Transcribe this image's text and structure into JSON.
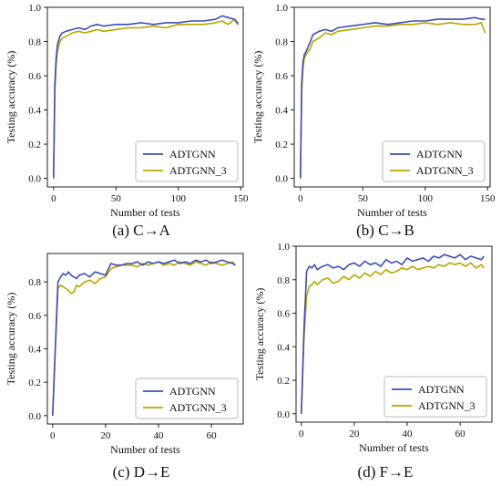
{
  "chart_data": [
    {
      "type": "line",
      "caption": "(a) C→A",
      "xlabel": "Number of tests",
      "ylabel": "Testing accuracy (%)",
      "xlim": [
        -5,
        152
      ],
      "ylim": [
        -0.05,
        1.0
      ],
      "xticks": [
        0,
        50,
        100,
        150
      ],
      "yticks": [
        0.0,
        0.2,
        0.4,
        0.6,
        0.8,
        1.0
      ],
      "ytick_labels": [
        "0.0",
        "0.2",
        "0.4",
        "0.6",
        "0.8",
        "1.0"
      ],
      "legend_position": "lower-right",
      "grid": false,
      "series": [
        {
          "name": "ADTGNN",
          "color": "#3f4fb5",
          "x": [
            0,
            1,
            2,
            3,
            5,
            7,
            10,
            15,
            20,
            25,
            30,
            35,
            40,
            50,
            60,
            70,
            80,
            90,
            100,
            110,
            120,
            130,
            135,
            140,
            145,
            148
          ],
          "y": [
            0.0,
            0.55,
            0.7,
            0.78,
            0.83,
            0.85,
            0.86,
            0.87,
            0.88,
            0.87,
            0.89,
            0.9,
            0.89,
            0.9,
            0.9,
            0.91,
            0.9,
            0.91,
            0.91,
            0.92,
            0.92,
            0.93,
            0.95,
            0.94,
            0.93,
            0.9
          ]
        },
        {
          "name": "ADTGNN_3",
          "color": "#b5a800",
          "x": [
            0,
            1,
            2,
            3,
            5,
            7,
            10,
            15,
            20,
            25,
            30,
            35,
            40,
            50,
            60,
            70,
            80,
            90,
            100,
            110,
            120,
            130,
            135,
            140,
            145,
            148
          ],
          "y": [
            0.0,
            0.5,
            0.66,
            0.74,
            0.8,
            0.82,
            0.83,
            0.85,
            0.86,
            0.85,
            0.86,
            0.87,
            0.86,
            0.87,
            0.88,
            0.88,
            0.89,
            0.88,
            0.9,
            0.9,
            0.9,
            0.91,
            0.92,
            0.9,
            0.93,
            0.91
          ]
        }
      ]
    },
    {
      "type": "line",
      "caption": "(b) C→B",
      "xlabel": "Number of tests",
      "ylabel": "Testing accuracy (%)",
      "xlim": [
        -5,
        152
      ],
      "ylim": [
        -0.05,
        1.0
      ],
      "xticks": [
        0,
        50,
        100,
        150
      ],
      "yticks": [
        0.0,
        0.2,
        0.4,
        0.6,
        0.8,
        1.0
      ],
      "ytick_labels": [
        "0.0",
        "0.2",
        "0.4",
        "0.6",
        "0.8",
        "1.0"
      ],
      "legend_position": "lower-right",
      "grid": false,
      "series": [
        {
          "name": "ADTGNN",
          "color": "#3f4fb5",
          "x": [
            0,
            1,
            2,
            3,
            5,
            8,
            10,
            15,
            20,
            25,
            30,
            40,
            50,
            60,
            70,
            80,
            90,
            100,
            110,
            120,
            130,
            140,
            145,
            148
          ],
          "y": [
            0.0,
            0.55,
            0.68,
            0.72,
            0.75,
            0.8,
            0.84,
            0.86,
            0.87,
            0.86,
            0.88,
            0.89,
            0.9,
            0.91,
            0.9,
            0.91,
            0.92,
            0.92,
            0.93,
            0.93,
            0.93,
            0.94,
            0.93,
            0.93
          ]
        },
        {
          "name": "ADTGNN_3",
          "color": "#b5a800",
          "x": [
            0,
            1,
            2,
            3,
            5,
            8,
            10,
            15,
            20,
            25,
            30,
            40,
            50,
            60,
            70,
            80,
            90,
            100,
            110,
            120,
            130,
            140,
            145,
            148
          ],
          "y": [
            0.0,
            0.5,
            0.64,
            0.7,
            0.73,
            0.76,
            0.8,
            0.82,
            0.85,
            0.84,
            0.86,
            0.87,
            0.88,
            0.89,
            0.89,
            0.9,
            0.9,
            0.91,
            0.9,
            0.91,
            0.9,
            0.9,
            0.91,
            0.85
          ]
        }
      ]
    },
    {
      "type": "line",
      "caption": "(c) D→E",
      "xlabel": "Number of tests",
      "ylabel": "Testing accuracy (%)",
      "xlim": [
        -2,
        72
      ],
      "ylim": [
        -0.05,
        0.97
      ],
      "xticks": [
        0,
        20,
        40,
        60
      ],
      "yticks": [
        0.0,
        0.2,
        0.4,
        0.6,
        0.8
      ],
      "ytick_labels": [
        "0.0",
        "0.2",
        "0.4",
        "0.6",
        "0.8"
      ],
      "legend_position": "lower-right",
      "grid": false,
      "series": [
        {
          "name": "ADTGNN",
          "color": "#3f4fb5",
          "x": [
            0,
            1,
            2,
            3,
            4,
            5,
            6,
            7,
            8,
            9,
            10,
            12,
            14,
            16,
            18,
            20,
            22,
            24,
            26,
            28,
            30,
            32,
            34,
            36,
            38,
            40,
            42,
            44,
            46,
            48,
            50,
            52,
            54,
            56,
            58,
            60,
            62,
            64,
            66,
            68,
            69
          ],
          "y": [
            0.0,
            0.4,
            0.8,
            0.83,
            0.85,
            0.84,
            0.86,
            0.84,
            0.83,
            0.82,
            0.84,
            0.85,
            0.83,
            0.86,
            0.85,
            0.84,
            0.91,
            0.9,
            0.9,
            0.91,
            0.91,
            0.92,
            0.9,
            0.92,
            0.91,
            0.92,
            0.91,
            0.92,
            0.93,
            0.91,
            0.92,
            0.91,
            0.93,
            0.92,
            0.93,
            0.91,
            0.92,
            0.93,
            0.92,
            0.91,
            0.9
          ]
        },
        {
          "name": "ADTGNN_3",
          "color": "#b5a800",
          "x": [
            0,
            1,
            2,
            3,
            4,
            5,
            6,
            7,
            8,
            9,
            10,
            12,
            14,
            16,
            18,
            20,
            22,
            24,
            26,
            28,
            30,
            32,
            34,
            36,
            38,
            40,
            42,
            44,
            46,
            48,
            50,
            52,
            54,
            56,
            58,
            60,
            62,
            64,
            66,
            68,
            69
          ],
          "y": [
            0.0,
            0.4,
            0.76,
            0.78,
            0.77,
            0.76,
            0.75,
            0.73,
            0.74,
            0.78,
            0.77,
            0.8,
            0.81,
            0.79,
            0.82,
            0.83,
            0.88,
            0.89,
            0.9,
            0.9,
            0.9,
            0.89,
            0.91,
            0.9,
            0.91,
            0.92,
            0.9,
            0.91,
            0.9,
            0.92,
            0.91,
            0.9,
            0.92,
            0.91,
            0.9,
            0.92,
            0.91,
            0.9,
            0.91,
            0.92,
            0.9
          ]
        }
      ]
    },
    {
      "type": "line",
      "caption": "(d) F→E",
      "xlabel": "Number of tests",
      "ylabel": "Testing accuracy (%)",
      "xlim": [
        -2,
        72
      ],
      "ylim": [
        -0.05,
        1.0
      ],
      "xticks": [
        0,
        20,
        40,
        60
      ],
      "yticks": [
        0.0,
        0.2,
        0.4,
        0.6,
        0.8,
        1.0
      ],
      "ytick_labels": [
        "0.0",
        "0.2",
        "0.4",
        "0.6",
        "0.8",
        "1.0"
      ],
      "legend_position": "lower-right",
      "grid": false,
      "series": [
        {
          "name": "ADTGNN",
          "color": "#3f4fb5",
          "x": [
            0,
            1,
            2,
            3,
            4,
            5,
            6,
            8,
            10,
            12,
            14,
            16,
            18,
            20,
            22,
            24,
            26,
            28,
            30,
            32,
            34,
            36,
            38,
            40,
            42,
            44,
            46,
            48,
            50,
            52,
            54,
            56,
            58,
            60,
            62,
            64,
            66,
            68,
            69
          ],
          "y": [
            0.0,
            0.5,
            0.85,
            0.88,
            0.87,
            0.89,
            0.86,
            0.88,
            0.89,
            0.87,
            0.88,
            0.86,
            0.89,
            0.9,
            0.88,
            0.91,
            0.89,
            0.9,
            0.88,
            0.92,
            0.9,
            0.91,
            0.89,
            0.93,
            0.91,
            0.92,
            0.93,
            0.91,
            0.94,
            0.93,
            0.95,
            0.94,
            0.93,
            0.95,
            0.92,
            0.94,
            0.93,
            0.92,
            0.94
          ]
        },
        {
          "name": "ADTGNN_3",
          "color": "#b5a800",
          "x": [
            0,
            1,
            2,
            3,
            4,
            5,
            6,
            8,
            10,
            12,
            14,
            16,
            18,
            20,
            22,
            24,
            26,
            28,
            30,
            32,
            34,
            36,
            38,
            40,
            42,
            44,
            46,
            48,
            50,
            52,
            54,
            56,
            58,
            60,
            62,
            64,
            66,
            68,
            69
          ],
          "y": [
            0.0,
            0.45,
            0.7,
            0.76,
            0.77,
            0.79,
            0.77,
            0.8,
            0.81,
            0.78,
            0.79,
            0.82,
            0.8,
            0.83,
            0.81,
            0.84,
            0.82,
            0.85,
            0.83,
            0.86,
            0.84,
            0.85,
            0.87,
            0.86,
            0.88,
            0.86,
            0.87,
            0.88,
            0.87,
            0.89,
            0.88,
            0.9,
            0.89,
            0.9,
            0.88,
            0.9,
            0.87,
            0.89,
            0.87
          ]
        }
      ]
    }
  ]
}
